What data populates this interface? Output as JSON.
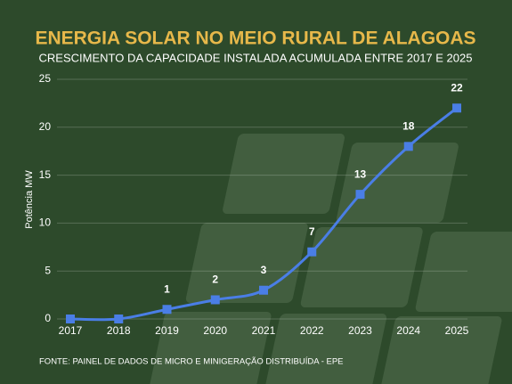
{
  "chart_data": {
    "type": "line",
    "title": "ENERGIA SOLAR NO MEIO RURAL DE ALAGOAS",
    "subtitle": "CRESCIMENTO DA CAPACIDADE INSTALADA ACUMULADA ENTRE 2017 E 2025",
    "y_label": "Potência MW",
    "source": "FONTE: PAINEL DE DADOS DE MICRO E MINIGERAÇÃO DISTRIBUÍDA - EPE",
    "categories": [
      "2017",
      "2018",
      "2019",
      "2020",
      "2021",
      "2022",
      "2023",
      "2024",
      "2025"
    ],
    "series": [
      {
        "name": "Potência MW",
        "color": "#4a7ee6",
        "values": [
          0,
          0,
          1,
          2,
          3,
          7,
          13,
          18,
          22
        ]
      }
    ],
    "ylim": [
      0,
      25
    ],
    "yticks": [
      0,
      5,
      10,
      15,
      20,
      25
    ],
    "grid": true
  }
}
